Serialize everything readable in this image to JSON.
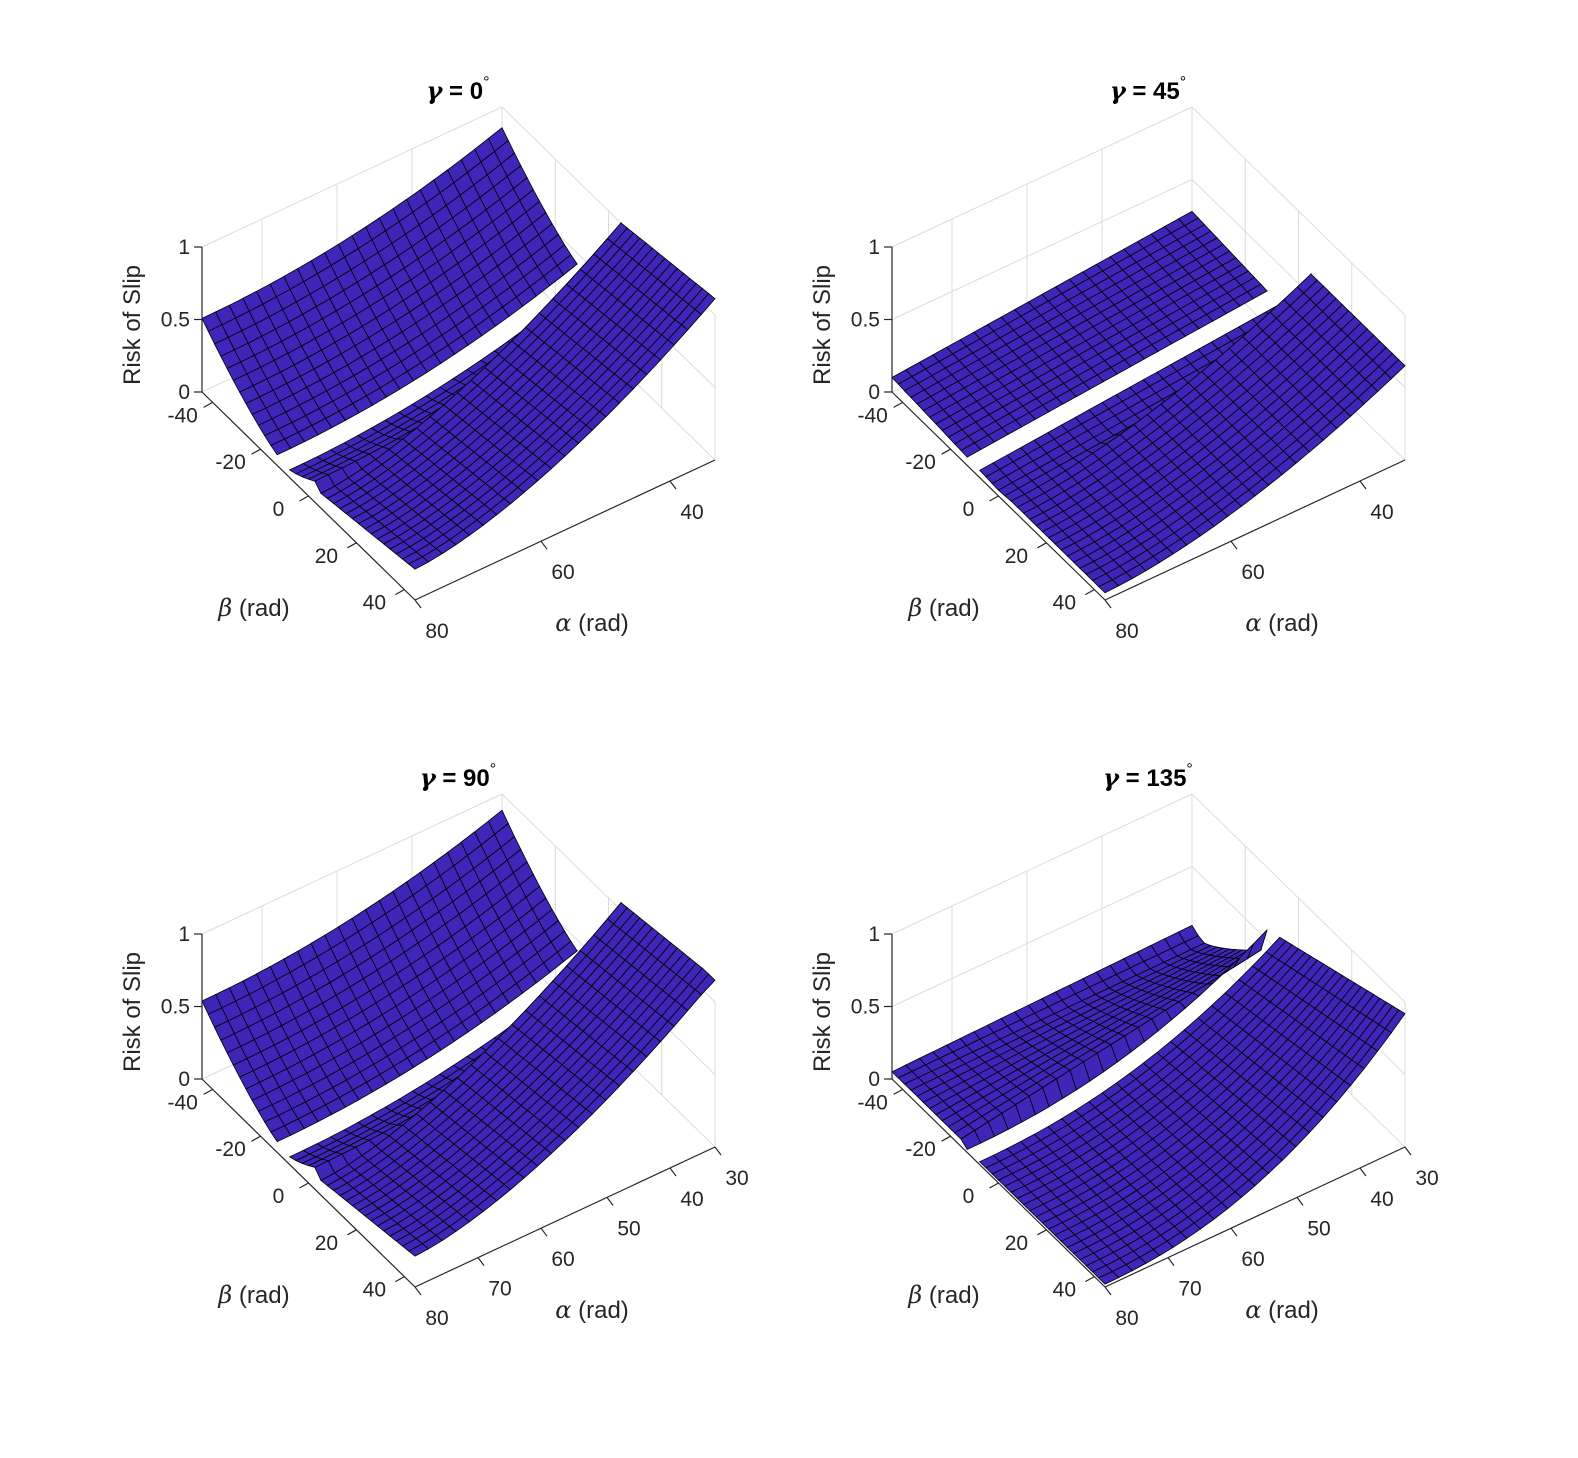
{
  "colors": {
    "surface": "#3f25b8",
    "mesh": "#000000",
    "grid": "#dcdcdc",
    "axis": "#262626",
    "background": "#ffffff"
  },
  "chart_data": [
    {
      "type": "surface3d",
      "title": "γ = 0°",
      "title_symbol": "γ",
      "title_rest": " = 0",
      "title_sup": "°",
      "zlabel": "Risk of Slip",
      "xlabel_symbol": "α",
      "xlabel_rest": " (rad)",
      "ylabel_symbol": "β",
      "ylabel_rest": " (rad)",
      "xticks": [
        "40",
        "60",
        "80"
      ],
      "yticks": [
        "-40",
        "-20",
        "0",
        "20",
        "40"
      ],
      "zticks": [
        "0",
        "0.5",
        "1"
      ],
      "xlim": [
        35,
        80
      ],
      "ylim": [
        -45,
        45
      ],
      "zlim": [
        0,
        1
      ],
      "grid": true
    },
    {
      "type": "surface3d",
      "title": "γ = 45°",
      "title_symbol": "γ",
      "title_rest": " = 45",
      "title_sup": "°",
      "zlabel": "Risk of Slip",
      "xlabel_symbol": "α",
      "xlabel_rest": " (rad)",
      "ylabel_symbol": "β",
      "ylabel_rest": " (rad)",
      "xticks": [
        "40",
        "60",
        "80"
      ],
      "yticks": [
        "-40",
        "-20",
        "0",
        "20",
        "40"
      ],
      "zticks": [
        "0",
        "0.5",
        "1"
      ],
      "xlim": [
        35,
        80
      ],
      "ylim": [
        -45,
        45
      ],
      "zlim": [
        0,
        1
      ],
      "grid": true
    },
    {
      "type": "surface3d",
      "title": "γ = 90°",
      "title_symbol": "γ",
      "title_rest": " = 90",
      "title_sup": "°",
      "zlabel": "Risk of Slip",
      "xlabel_symbol": "α",
      "xlabel_rest": " (rad)",
      "ylabel_symbol": "β",
      "ylabel_rest": " (rad)",
      "xticks": [
        "30",
        "40",
        "50",
        "60",
        "70",
        "80"
      ],
      "yticks": [
        "-40",
        "-20",
        "0",
        "20",
        "40"
      ],
      "zticks": [
        "0",
        "0.5",
        "1"
      ],
      "xlim": [
        30,
        80
      ],
      "ylim": [
        -45,
        45
      ],
      "zlim": [
        0,
        1
      ],
      "grid": true
    },
    {
      "type": "surface3d",
      "title": "γ = 135°",
      "title_symbol": "γ",
      "title_rest": " = 135",
      "title_sup": "°",
      "zlabel": "Risk of Slip",
      "xlabel_symbol": "α",
      "xlabel_rest": " (rad)",
      "ylabel_symbol": "β",
      "ylabel_rest": " (rad)",
      "xticks": [
        "30",
        "40",
        "50",
        "60",
        "70",
        "80"
      ],
      "yticks": [
        "-40",
        "-20",
        "0",
        "20",
        "40"
      ],
      "zticks": [
        "0",
        "0.5",
        "1"
      ],
      "xlim": [
        30,
        80
      ],
      "ylim": [
        -45,
        45
      ],
      "zlim": [
        0,
        1
      ],
      "grid": true
    }
  ]
}
